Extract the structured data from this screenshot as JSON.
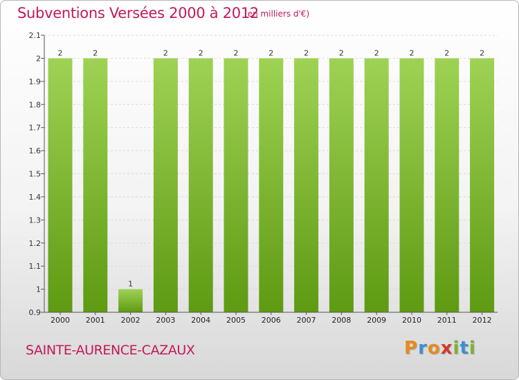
{
  "header": {
    "title": "Subventions Versées 2000 à 2012",
    "unit_note": "(en milliers d'€)"
  },
  "footer": {
    "municipality": "SAINTE-AURENCE-CAZAUX",
    "logo_text": "Proxiti"
  },
  "colors": {
    "accent": "#c2185b",
    "bar_top": "#9fd254",
    "bar_bottom": "#5e9a12",
    "logo_letters": [
      "#e88a1a",
      "#3d8fd4",
      "#e88a1a",
      "#d23a2a",
      "#7ab32e",
      "#3d8fd4",
      "#7ab32e"
    ]
  },
  "chart_data": {
    "type": "bar",
    "categories": [
      "2000",
      "2001",
      "2002",
      "2003",
      "2004",
      "2005",
      "2006",
      "2007",
      "2008",
      "2009",
      "2010",
      "2011",
      "2012"
    ],
    "values": [
      2,
      2,
      1,
      2,
      2,
      2,
      2,
      2,
      2,
      2,
      2,
      2,
      2
    ],
    "data_labels": [
      "2",
      "2",
      "1",
      "2",
      "2",
      "2",
      "2",
      "2",
      "2",
      "2",
      "2",
      "2",
      "2"
    ],
    "yticks": [
      "0.9",
      "1",
      "1.1",
      "1.2",
      "1.3",
      "1.4",
      "1.5",
      "1.6",
      "1.7",
      "1.8",
      "1.9",
      "2",
      "2.1"
    ],
    "ylim": [
      0.9,
      2.1
    ],
    "grid": true
  }
}
